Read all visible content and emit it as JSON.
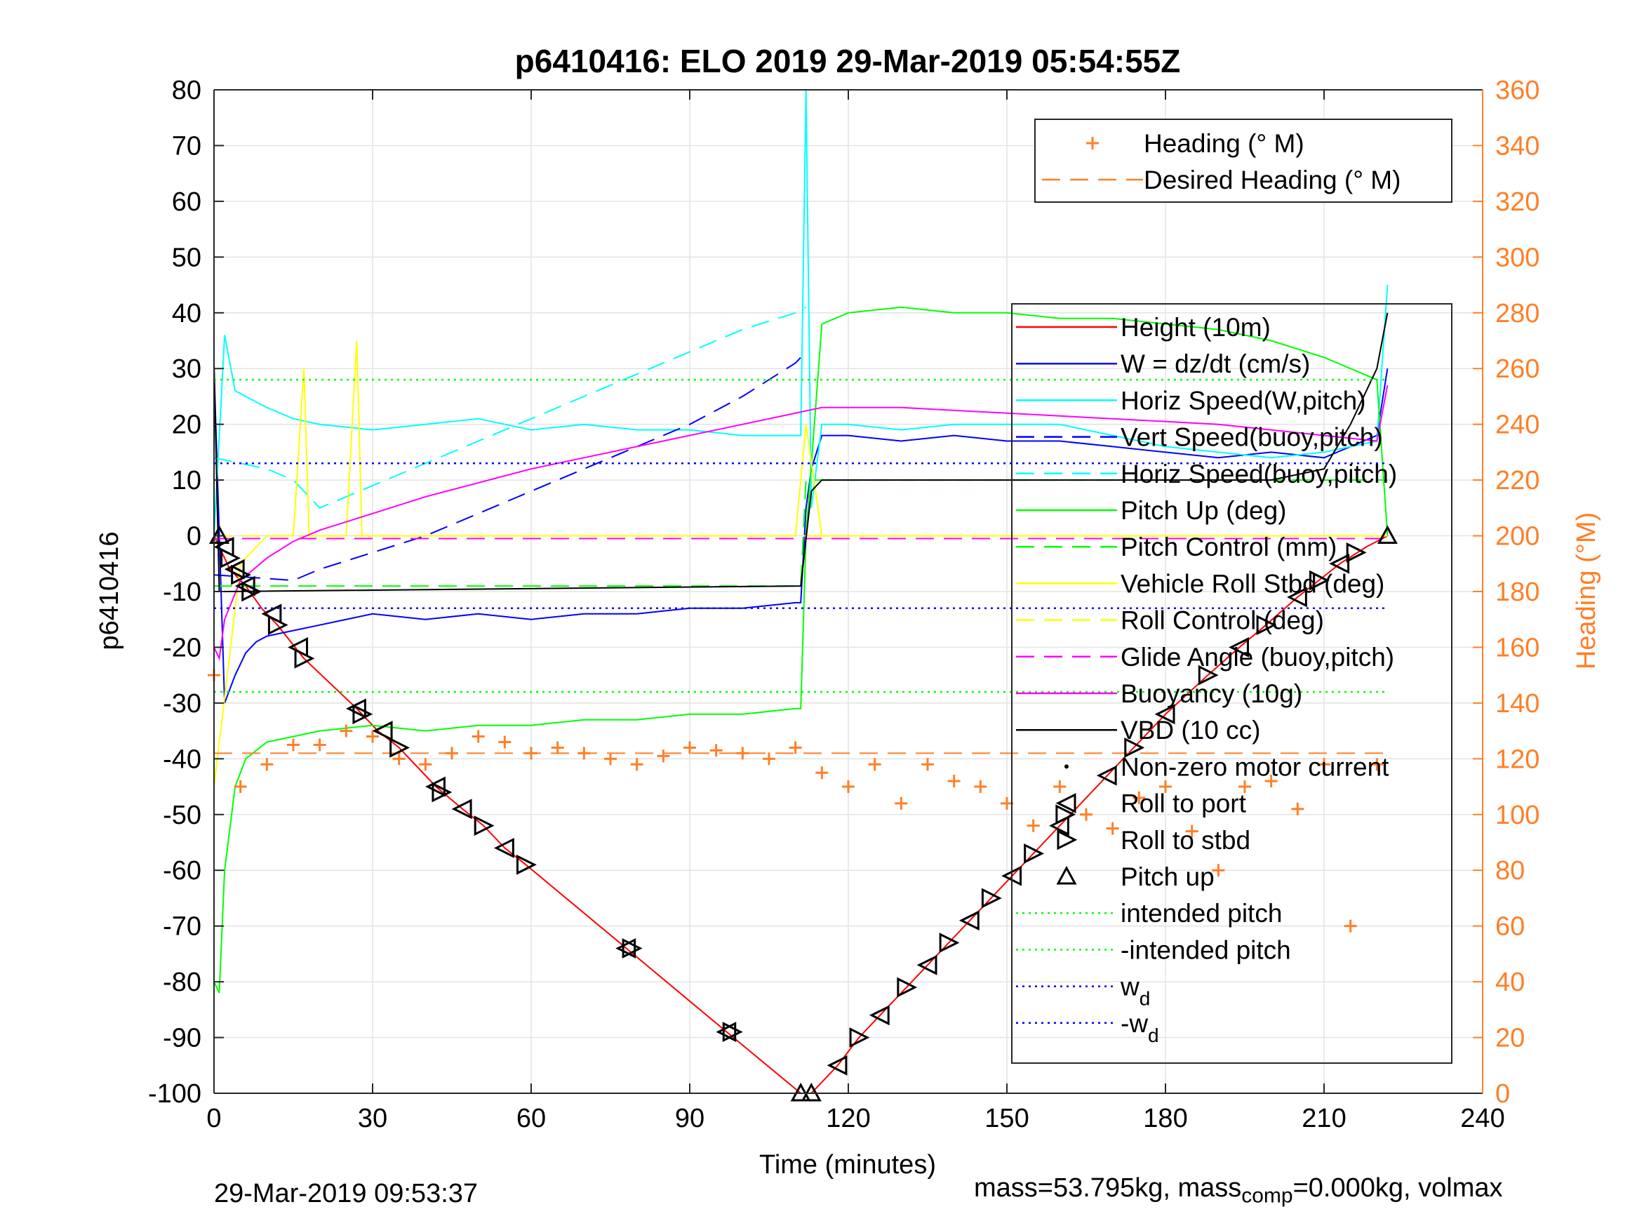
{
  "chart_data": {
    "type": "line",
    "title": "p6410416: ELO 2019 29-Mar-2019 05:54:55Z",
    "xlabel": "Time (minutes)",
    "ylabel": "p6410416",
    "y2label": "Heading (°M)",
    "xlim": [
      0,
      240
    ],
    "ylim": [
      -100,
      80
    ],
    "y2lim": [
      0,
      360
    ],
    "xticks": [
      "0",
      "30",
      "60",
      "90",
      "120",
      "150",
      "180",
      "210",
      "240"
    ],
    "yticks": [
      "80",
      "70",
      "60",
      "50",
      "40",
      "30",
      "20",
      "10",
      "0",
      "-10",
      "-20",
      "-30",
      "-40",
      "-50",
      "-60",
      "-70",
      "-80",
      "-90",
      "-100"
    ],
    "y2ticks": [
      "360",
      "340",
      "320",
      "300",
      "280",
      "260",
      "240",
      "220",
      "200",
      "180",
      "160",
      "140",
      "120",
      "100",
      "80",
      "60",
      "40",
      "20",
      "0"
    ],
    "grid": true,
    "series": [
      {
        "name": "Height (10m)",
        "color": "#ff0000",
        "style": "solid",
        "x": [
          0,
          3,
          6,
          9,
          12,
          17,
          27,
          31,
          35,
          42,
          47,
          51,
          55,
          59,
          78,
          97,
          111,
          112,
          113,
          118,
          122,
          126,
          131,
          135,
          139,
          143,
          147,
          151,
          155,
          160,
          164,
          169,
          174,
          180,
          188,
          194,
          199,
          205,
          209,
          213,
          218,
          222
        ],
        "y": [
          0,
          -6,
          -9,
          -13,
          -16,
          -22,
          -31,
          -35,
          -38,
          -45,
          -49,
          -52,
          -56,
          -59,
          -74,
          -89,
          -100,
          -100,
          -100,
          -95,
          -90,
          -86,
          -81,
          -77,
          -73,
          -69,
          -65,
          -61,
          -57,
          -52,
          -48,
          -43,
          -38,
          -32,
          -25,
          -20,
          -16,
          -11,
          -8,
          -5,
          -2,
          0
        ]
      },
      {
        "name": "W = dz/dt (cm/s)",
        "color": "#0000ff",
        "style": "solid",
        "x": [
          0,
          2,
          4,
          6,
          8,
          10,
          15,
          20,
          30,
          40,
          50,
          60,
          70,
          80,
          90,
          100,
          110,
          111,
          112,
          113,
          115,
          120,
          130,
          140,
          150,
          160,
          170,
          180,
          190,
          200,
          210,
          215,
          220,
          222
        ],
        "y": [
          30,
          -30,
          -25,
          -21,
          -19,
          -18,
          -17,
          -16,
          -14,
          -15,
          -14,
          -15,
          -14,
          -14,
          -13,
          -13,
          -12,
          -12,
          5,
          12,
          18,
          18,
          17,
          18,
          17,
          17,
          16,
          15,
          14,
          15,
          14,
          16,
          18,
          30
        ]
      },
      {
        "name": "Horiz Speed(W,pitch)",
        "color": "#00ffff",
        "style": "solid",
        "x": [
          0,
          2,
          4,
          6,
          8,
          10,
          15,
          20,
          30,
          40,
          50,
          60,
          70,
          80,
          90,
          100,
          110,
          111,
          112,
          113,
          115,
          120,
          130,
          140,
          150,
          160,
          170,
          180,
          190,
          200,
          210,
          220,
          222
        ],
        "y": [
          0,
          36,
          26,
          25,
          24,
          23,
          21,
          20,
          19,
          20,
          21,
          19,
          20,
          19,
          19,
          18,
          18,
          18,
          80,
          5,
          20,
          20,
          19,
          20,
          20,
          20,
          18,
          16,
          15,
          14,
          15,
          17,
          45
        ]
      },
      {
        "name": "Vert Speed(buoy,pitch)",
        "color": "#0000ff",
        "style": "dashed",
        "x": [
          0,
          15,
          20,
          30,
          40,
          50,
          60,
          70,
          80,
          90,
          100,
          110,
          112
        ],
        "y": [
          -7,
          -8,
          -6,
          -3,
          0,
          4,
          8,
          12,
          16,
          20,
          25,
          31,
          33
        ]
      },
      {
        "name": "Horiz Speed(buoy,pitch)",
        "color": "#00ffff",
        "style": "dashed",
        "x": [
          0,
          10,
          15,
          20,
          30,
          40,
          50,
          60,
          70,
          80,
          90,
          100,
          110,
          112
        ],
        "y": [
          14,
          12,
          10,
          5,
          9,
          13,
          17,
          21,
          25,
          29,
          33,
          37,
          40,
          41
        ]
      },
      {
        "name": "Pitch Up (deg)",
        "color": "#00ff00",
        "style": "solid",
        "x": [
          0,
          1,
          2,
          4,
          6,
          10,
          15,
          20,
          30,
          40,
          50,
          60,
          70,
          80,
          90,
          100,
          110,
          111,
          112,
          115,
          120,
          130,
          140,
          150,
          160,
          170,
          180,
          190,
          200,
          210,
          220,
          222
        ],
        "y": [
          -80,
          -82,
          -60,
          -45,
          -40,
          -37,
          -36,
          -35,
          -34,
          -35,
          -34,
          -34,
          -33,
          -33,
          -32,
          -32,
          -31,
          -31,
          0,
          38,
          40,
          41,
          40,
          40,
          39,
          39,
          38,
          37,
          35,
          32,
          28,
          0
        ]
      },
      {
        "name": "Pitch Control (mm)",
        "color": "#00ff00",
        "style": "dashed",
        "x": [
          0,
          111,
          112,
          222
        ],
        "y": [
          -9,
          -9,
          10,
          10
        ]
      },
      {
        "name": "Vehicle Roll Stbd (deg)",
        "color": "#ffff00",
        "style": "solid",
        "x": [
          0,
          5,
          10,
          15,
          17,
          18,
          19,
          20,
          25,
          27,
          28,
          29,
          30,
          40,
          50,
          60,
          80,
          90,
          100,
          110,
          112,
          115,
          120,
          130,
          140,
          150,
          160,
          170,
          180,
          190,
          200,
          210,
          220,
          222
        ],
        "y": [
          -45,
          -5,
          0,
          0,
          30,
          0,
          0,
          0,
          0,
          35,
          0,
          0,
          0,
          0,
          0,
          0,
          0,
          0,
          0,
          0,
          20,
          0,
          0,
          0,
          0,
          0,
          0,
          0,
          0,
          0,
          0,
          0,
          0,
          0
        ]
      },
      {
        "name": "Roll Control (deg)",
        "color": "#ffff00",
        "style": "dashed",
        "x": [
          0,
          222
        ],
        "y": [
          0,
          0
        ]
      },
      {
        "name": "Glide Angle (buoy,pitch)",
        "color": "#ff00ff",
        "style": "dashed",
        "x": [
          0,
          222
        ],
        "y": [
          -0.5,
          -0.5
        ]
      },
      {
        "name": "Buoyancy (10g)",
        "color": "#ff00ff",
        "style": "solid",
        "x": [
          0,
          1,
          2,
          5,
          10,
          15,
          20,
          30,
          40,
          60,
          80,
          100,
          115,
          130,
          150,
          170,
          190,
          210,
          220,
          222
        ],
        "y": [
          -20,
          -22,
          -15,
          -8,
          -4,
          -1,
          1,
          4,
          7,
          12,
          16,
          20,
          23,
          23,
          22,
          21,
          20,
          18,
          17,
          27
        ]
      },
      {
        "name": "VBD (10 cc)",
        "color": "#000000",
        "style": "solid",
        "x": [
          0,
          1,
          2,
          111,
          113,
          115,
          200,
          210,
          215,
          220,
          222
        ],
        "y": [
          31,
          -10,
          -10,
          -9,
          8,
          10,
          10,
          12,
          20,
          30,
          40
        ]
      },
      {
        "name": "Heading (° M)",
        "color": "#ff7f27",
        "style": "plus",
        "axis": "right",
        "x": [
          0,
          5,
          10,
          15,
          20,
          25,
          30,
          35,
          40,
          45,
          50,
          55,
          60,
          65,
          70,
          75,
          80,
          85,
          90,
          95,
          100,
          105,
          110,
          115,
          120,
          125,
          130,
          135,
          140,
          145,
          150,
          155,
          160,
          165,
          170,
          175,
          180,
          185,
          190,
          195,
          200,
          205,
          210,
          215,
          220
        ],
        "y": [
          150,
          110,
          118,
          125,
          125,
          130,
          128,
          120,
          118,
          122,
          128,
          126,
          122,
          124,
          122,
          120,
          118,
          121,
          124,
          123,
          122,
          120,
          124,
          115,
          110,
          118,
          104,
          118,
          112,
          110,
          104,
          96,
          110,
          100,
          95,
          106,
          110,
          94,
          80,
          110,
          112,
          102,
          118,
          60,
          118
        ]
      },
      {
        "name": "Desired Heading (° M)",
        "color": "#ff7f27",
        "style": "dashed",
        "axis": "right",
        "x": [
          0,
          222
        ],
        "y": [
          122,
          122
        ]
      },
      {
        "name": "Non-zero motor current",
        "color": "#000000",
        "style": "dot",
        "x": [],
        "y": []
      },
      {
        "name": "Roll to port",
        "color": "#000000",
        "style": "triangle-left",
        "x": [
          2,
          4,
          6,
          11,
          16,
          27,
          32,
          42,
          47,
          55,
          78,
          97,
          118,
          126,
          135,
          143,
          151,
          160,
          169,
          180,
          194,
          205,
          213
        ],
        "y": [
          -2,
          -6,
          -9,
          -14,
          -20,
          -31,
          -35,
          -45,
          -49,
          -56,
          -74,
          -89,
          -95,
          -86,
          -77,
          -69,
          -61,
          -52,
          -43,
          -32,
          -20,
          -11,
          -5
        ]
      },
      {
        "name": "Roll to stbd",
        "color": "#000000",
        "style": "triangle-right",
        "x": [
          3,
          5,
          7,
          12,
          17,
          28,
          35,
          43,
          51,
          59,
          79,
          98,
          122,
          131,
          139,
          147,
          155,
          161,
          174,
          188,
          199,
          209,
          216
        ],
        "y": [
          -4,
          -7,
          -10,
          -16,
          -22,
          -32,
          -38,
          -46,
          -52,
          -59,
          -74,
          -89,
          -90,
          -81,
          -73,
          -65,
          -57,
          -50,
          -38,
          -25,
          -16,
          -8,
          -3
        ]
      },
      {
        "name": "Pitch up",
        "color": "#000000",
        "style": "triangle-up",
        "x": [
          1,
          111,
          113,
          222
        ],
        "y": [
          0,
          -100,
          -100,
          0
        ]
      },
      {
        "name": "intended pitch",
        "color": "#00ff00",
        "style": "dotted",
        "x": [
          0,
          222
        ],
        "y": [
          28,
          28
        ]
      },
      {
        "name": "-intended pitch",
        "color": "#00ff00",
        "style": "dotted",
        "x": [
          0,
          222
        ],
        "y": [
          -28,
          -28
        ]
      },
      {
        "name": "wd",
        "color": "#0000ff",
        "style": "dotted",
        "x": [
          0,
          222
        ],
        "y": [
          13,
          13
        ]
      },
      {
        "name": "-wd",
        "color": "#0000ff",
        "style": "dotted",
        "x": [
          0,
          222
        ],
        "y": [
          -13,
          -13
        ]
      }
    ],
    "legend_top": [
      {
        "label": "Heading (° M)",
        "color": "#ff7f27",
        "style": "plus"
      },
      {
        "label": "Desired Heading (° M)",
        "color": "#ff7f27",
        "style": "dashed"
      }
    ],
    "legend_main": [
      {
        "label": "Height (10m)",
        "color": "#ff0000",
        "style": "solid"
      },
      {
        "label": "W = dz/dt (cm/s)",
        "color": "#0000ff",
        "style": "solid"
      },
      {
        "label": "Horiz Speed(W,pitch)",
        "color": "#00ffff",
        "style": "solid"
      },
      {
        "label": "Vert Speed(buoy,pitch)",
        "color": "#0000ff",
        "style": "dashed"
      },
      {
        "label": "Horiz Speed(buoy,pitch)",
        "color": "#00ffff",
        "style": "dashed"
      },
      {
        "label": "Pitch Up (deg)",
        "color": "#00ff00",
        "style": "solid"
      },
      {
        "label": "Pitch Control (mm)",
        "color": "#00ff00",
        "style": "dashed"
      },
      {
        "label": "Vehicle Roll Stbd (deg)",
        "color": "#ffff00",
        "style": "solid"
      },
      {
        "label": "Roll Control (deg)",
        "color": "#ffff00",
        "style": "dashed"
      },
      {
        "label": "Glide Angle (buoy,pitch)",
        "color": "#ff00ff",
        "style": "dashed"
      },
      {
        "label": "Buoyancy (10g)",
        "color": "#ff00ff",
        "style": "solid"
      },
      {
        "label": "VBD (10 cc)",
        "color": "#000000",
        "style": "solid"
      },
      {
        "label": "Non-zero motor current",
        "color": "#000000",
        "style": "dot"
      },
      {
        "label": "Roll to port",
        "color": "#000000",
        "style": "triangle-left"
      },
      {
        "label": "Roll to stbd",
        "color": "#000000",
        "style": "triangle-right"
      },
      {
        "label": "Pitch up",
        "color": "#000000",
        "style": "triangle-up"
      },
      {
        "label": "intended pitch",
        "color": "#00ff00",
        "style": "dotted"
      },
      {
        "label": "-intended pitch",
        "color": "#00ff00",
        "style": "dotted"
      },
      {
        "label": "w",
        "sub": "d",
        "color": "#0000ff",
        "style": "dotted"
      },
      {
        "label": "-w",
        "sub": "d",
        "color": "#0000ff",
        "style": "dotted"
      }
    ],
    "legend_placement": [
      "top-right",
      "right"
    ]
  },
  "footer": {
    "date": "29-Mar-2019 09:53:37",
    "mass_text": "mass=53.795kg, mass",
    "mass_sub": "comp",
    "mass_rest": "=0.000kg, volmax"
  }
}
